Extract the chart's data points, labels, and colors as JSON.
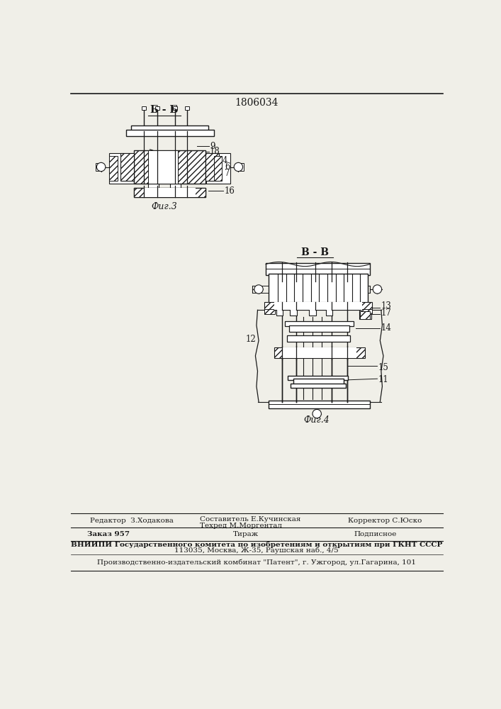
{
  "patent_number": "1806034",
  "bg": "#f0efe8",
  "lc": "#1a1a1a",
  "fig3_label": "Фиг.3",
  "fig4_label": "Фиг.4",
  "bb_label": "Б - Б",
  "vv_label": "В - В",
  "footer1a": "Редактор  З.Ходакова",
  "footer1b": "Составитель Е.Кучинская",
  "footer1c": "Техред М.Моргентал",
  "footer1d": "Корректор С.Юско",
  "footer2a": "Заказ 957",
  "footer2b": "Тираж",
  "footer2c": "Подписное",
  "footer3": "ВНИИПИ Государственного комитета по изобретениям и открытиям при ГКНТ СССР",
  "footer4": "113035, Москва, Ж-35, Раушская наб., 4/5",
  "footer5": "Производственно-издательский комбинат \"Патент\", г. Ужгород, ул.Гагарина, 101"
}
